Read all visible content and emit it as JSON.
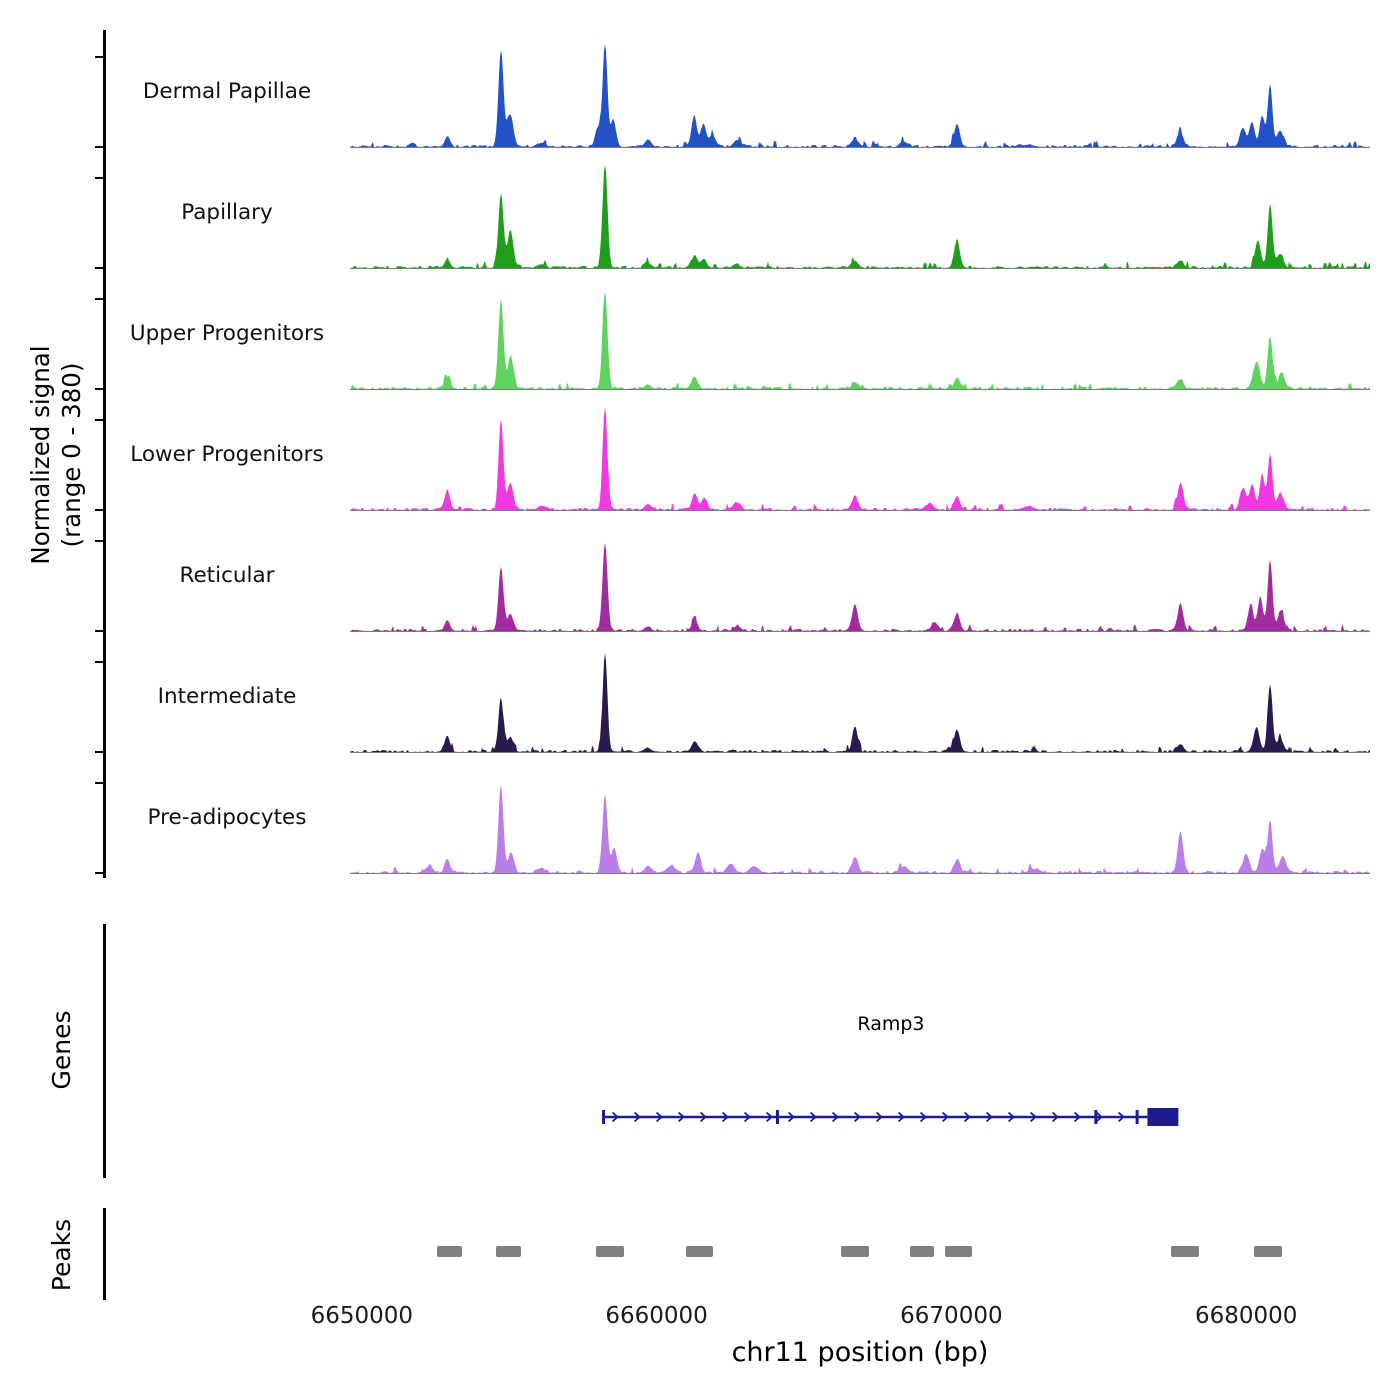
{
  "y_axis": {
    "label": "Normalized signal",
    "sublabel": "(range 0 - 380)",
    "range_min": 0,
    "range_max": 380
  },
  "x_axis": {
    "title": "chr11 position (bp)",
    "tick_labels": [
      "6650000",
      "6660000",
      "6670000",
      "6680000"
    ],
    "tick_positions": [
      6650000,
      6660000,
      6670000,
      6680000
    ],
    "bp_start": 6649600,
    "bp_end": 6684200
  },
  "sections": {
    "genes_label": "Genes",
    "peaks_label": "Peaks"
  },
  "gene": {
    "name": "Ramp3",
    "start": 6658200,
    "end": 6677700,
    "strand": "+",
    "color": "#1c1c8f",
    "exon_ticks": [
      6658200,
      6664100,
      6674900,
      6676300
    ],
    "terminal_exon": [
      6676650,
      6677700
    ]
  },
  "peak_color": "#7f7f7f",
  "peak_intervals": [
    [
      6652550,
      6653400
    ],
    [
      6654550,
      6655400
    ],
    [
      6657950,
      6658900
    ],
    [
      6661000,
      6661900
    ],
    [
      6666250,
      6667200
    ],
    [
      6668600,
      6669400
    ],
    [
      6669800,
      6670700
    ],
    [
      6677450,
      6678400
    ],
    [
      6680250,
      6681200
    ]
  ],
  "chart_data": {
    "type": "area",
    "title": "",
    "xlabel": "chr11 position (bp)",
    "ylabel": "Normalized signal (range 0 - 380)",
    "x_range": [
      6649600,
      6684200
    ],
    "y_range": [
      0,
      380
    ],
    "peak_format": "[center_bp, height_signal, sigma_bp]",
    "series": [
      {
        "name": "Dermal Papillae",
        "color": "#2351c8",
        "peaks": [
          [
            6651700,
            12,
            90
          ],
          [
            6652900,
            38,
            90
          ],
          [
            6654720,
            355,
            85
          ],
          [
            6655030,
            120,
            110
          ],
          [
            6656100,
            15,
            120
          ],
          [
            6658000,
            70,
            90
          ],
          [
            6658250,
            380,
            80
          ],
          [
            6658530,
            100,
            90
          ],
          [
            6659700,
            25,
            110
          ],
          [
            6661270,
            112,
            90
          ],
          [
            6661590,
            85,
            90
          ],
          [
            6661900,
            45,
            100
          ],
          [
            6662730,
            25,
            120
          ],
          [
            6666730,
            30,
            110
          ],
          [
            6668400,
            20,
            120
          ],
          [
            6670190,
            85,
            95
          ],
          [
            6672600,
            8,
            200
          ],
          [
            6677760,
            55,
            110
          ],
          [
            6679890,
            70,
            100
          ],
          [
            6680200,
            90,
            90
          ],
          [
            6680540,
            115,
            85
          ],
          [
            6680810,
            225,
            80
          ],
          [
            6681150,
            60,
            110
          ]
        ]
      },
      {
        "name": "Papillary",
        "color": "#1f9e1b",
        "peaks": [
          [
            6652900,
            32,
            90
          ],
          [
            6654720,
            275,
            85
          ],
          [
            6655040,
            135,
            100
          ],
          [
            6656100,
            12,
            120
          ],
          [
            6658250,
            380,
            85
          ],
          [
            6659700,
            18,
            110
          ],
          [
            6661280,
            42,
            100
          ],
          [
            6661600,
            30,
            100
          ],
          [
            6662700,
            15,
            120
          ],
          [
            6666730,
            25,
            110
          ],
          [
            6670190,
            100,
            95
          ],
          [
            6677760,
            25,
            110
          ],
          [
            6680400,
            95,
            100
          ],
          [
            6680810,
            235,
            80
          ],
          [
            6681150,
            50,
            110
          ]
        ]
      },
      {
        "name": "Upper Progenitors",
        "color": "#5fd35f",
        "peaks": [
          [
            6652900,
            45,
            90
          ],
          [
            6654720,
            330,
            85
          ],
          [
            6655050,
            110,
            100
          ],
          [
            6658250,
            355,
            85
          ],
          [
            6659700,
            15,
            110
          ],
          [
            6661290,
            45,
            100
          ],
          [
            6666730,
            25,
            110
          ],
          [
            6670190,
            40,
            100
          ],
          [
            6677760,
            35,
            110
          ],
          [
            6680350,
            100,
            110
          ],
          [
            6680810,
            195,
            85
          ],
          [
            6681200,
            55,
            110
          ]
        ]
      },
      {
        "name": "Lower Progenitors",
        "color": "#ee3ae2",
        "peaks": [
          [
            6652900,
            70,
            90
          ],
          [
            6654720,
            335,
            80
          ],
          [
            6655040,
            100,
            100
          ],
          [
            6656100,
            15,
            120
          ],
          [
            6658250,
            380,
            80
          ],
          [
            6659700,
            20,
            110
          ],
          [
            6661290,
            62,
            95
          ],
          [
            6661620,
            45,
            95
          ],
          [
            6662730,
            25,
            120
          ],
          [
            6666730,
            50,
            100
          ],
          [
            6669270,
            25,
            120
          ],
          [
            6670190,
            45,
            100
          ],
          [
            6672600,
            12,
            200
          ],
          [
            6677770,
            100,
            95
          ],
          [
            6679890,
            78,
            100
          ],
          [
            6680200,
            95,
            90
          ],
          [
            6680540,
            130,
            85
          ],
          [
            6680810,
            205,
            80
          ],
          [
            6681160,
            60,
            110
          ]
        ]
      },
      {
        "name": "Reticular",
        "color": "#a32ba0",
        "peaks": [
          [
            6652900,
            40,
            90
          ],
          [
            6654720,
            230,
            85
          ],
          [
            6655040,
            62,
            100
          ],
          [
            6658250,
            320,
            85
          ],
          [
            6659700,
            15,
            110
          ],
          [
            6661290,
            38,
            100
          ],
          [
            6662730,
            18,
            120
          ],
          [
            6666730,
            95,
            95
          ],
          [
            6669440,
            32,
            110
          ],
          [
            6670190,
            62,
            100
          ],
          [
            6677770,
            100,
            95
          ],
          [
            6680150,
            80,
            100
          ],
          [
            6680480,
            120,
            90
          ],
          [
            6680810,
            262,
            80
          ],
          [
            6681170,
            68,
            110
          ]
        ]
      },
      {
        "name": "Intermediate",
        "color": "#2b1a4e",
        "peaks": [
          [
            6652900,
            60,
            90
          ],
          [
            6654720,
            195,
            85
          ],
          [
            6655040,
            55,
            100
          ],
          [
            6658250,
            360,
            80
          ],
          [
            6659700,
            15,
            110
          ],
          [
            6661290,
            38,
            100
          ],
          [
            6666730,
            95,
            90
          ],
          [
            6670190,
            82,
            95
          ],
          [
            6677760,
            28,
            110
          ],
          [
            6680350,
            90,
            100
          ],
          [
            6680810,
            250,
            80
          ],
          [
            6681150,
            50,
            110
          ]
        ]
      },
      {
        "name": "Pre-adipocytes",
        "color": "#bb7ee8",
        "peaks": [
          [
            6652300,
            25,
            110
          ],
          [
            6652900,
            52,
            90
          ],
          [
            6654720,
            318,
            85
          ],
          [
            6655060,
            70,
            100
          ],
          [
            6656100,
            18,
            120
          ],
          [
            6658250,
            290,
            85
          ],
          [
            6658560,
            92,
            95
          ],
          [
            6659700,
            25,
            110
          ],
          [
            6660500,
            28,
            130
          ],
          [
            6661400,
            72,
            100
          ],
          [
            6662500,
            32,
            130
          ],
          [
            6663300,
            25,
            130
          ],
          [
            6666730,
            58,
            100
          ],
          [
            6668400,
            25,
            120
          ],
          [
            6670190,
            48,
            100
          ],
          [
            6672800,
            15,
            180
          ],
          [
            6677770,
            150,
            95
          ],
          [
            6680000,
            65,
            110
          ],
          [
            6680540,
            82,
            95
          ],
          [
            6680810,
            195,
            80
          ],
          [
            6681250,
            60,
            110
          ]
        ]
      }
    ]
  }
}
